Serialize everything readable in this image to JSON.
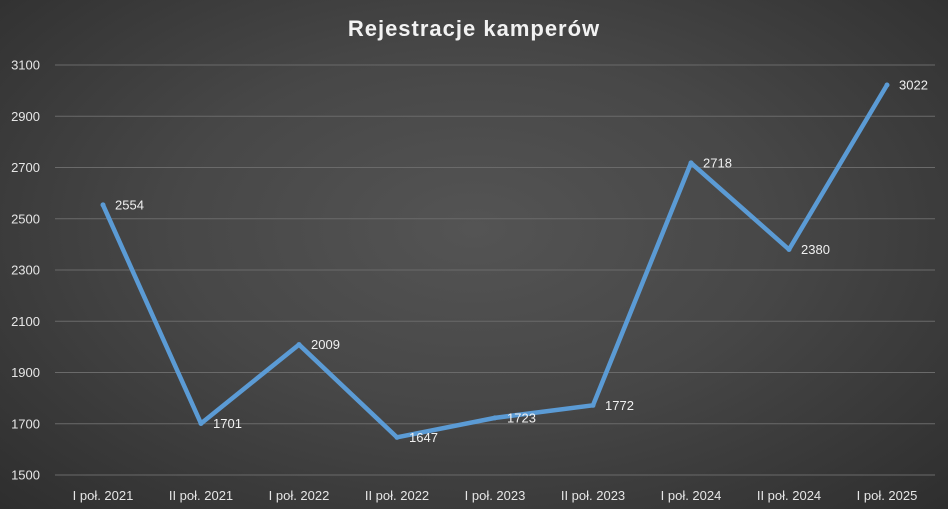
{
  "chart_data": {
    "type": "line",
    "title": "Rejestracje kamperów",
    "xlabel": "",
    "ylabel": "",
    "categories": [
      "I poł. 2021",
      "II poł. 2021",
      "I poł. 2022",
      "II poł. 2022",
      "I poł. 2023",
      "II poł. 2023",
      "I poł. 2024",
      "II poł. 2024",
      "I poł. 2025"
    ],
    "series": [
      {
        "values": [
          2554,
          1701,
          2009,
          1647,
          1723,
          1772,
          2718,
          2380,
          3022
        ]
      }
    ],
    "ylim": [
      1500,
      3100
    ],
    "yticks": [
      1500,
      1700,
      1900,
      2100,
      2300,
      2500,
      2700,
      2900,
      3100
    ],
    "grid": true,
    "legend": "none",
    "data_labels": true
  },
  "colors": {
    "line": "#5b9bd5",
    "background": "#474747",
    "text": "#f0f0f0"
  }
}
